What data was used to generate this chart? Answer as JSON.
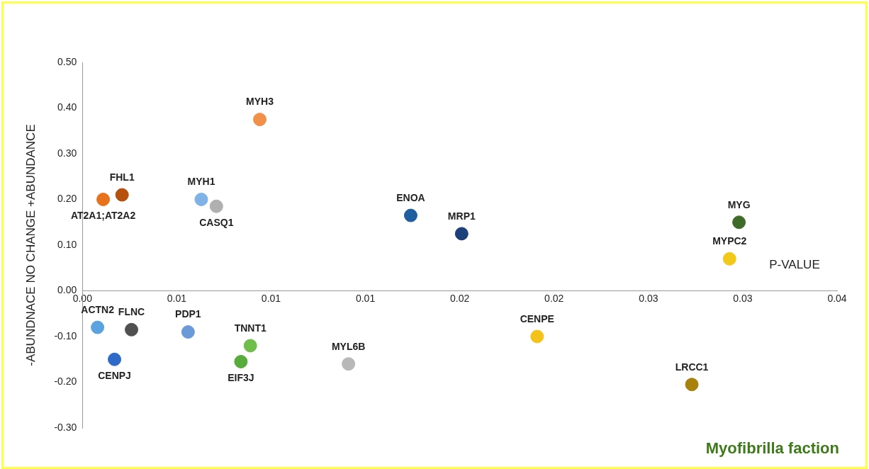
{
  "chart_data": {
    "type": "scatter",
    "ylabel": "-ABUNDNACE NO CHANGE +ABUNDANCE",
    "xlabel": "P-VALUE",
    "x": [
      0.0021,
      0.0011,
      0.0094,
      0.0063,
      0.0071,
      0.0174,
      0.0201,
      0.0348,
      0.0343,
      0.0008,
      0.0026,
      0.0017,
      0.0056,
      0.0089,
      0.0084,
      0.0141,
      0.0241,
      0.0323
    ],
    "values": [
      0.21,
      0.2,
      0.375,
      0.2,
      0.185,
      0.165,
      0.125,
      0.15,
      0.07,
      -0.08,
      -0.085,
      -0.15,
      -0.09,
      -0.12,
      -0.155,
      -0.16,
      -0.1,
      -0.205
    ],
    "colors": [
      "#b5500f",
      "#e8721c",
      "#f0904a",
      "#7fb2e6",
      "#b0b0b0",
      "#1f5fa0",
      "#1d3f7a",
      "#3f6b28",
      "#f2c81a",
      "#5aa2e0",
      "#505050",
      "#2f6bc6",
      "#6a9ad8",
      "#6fbd4a",
      "#58ac3c",
      "#b8b8b8",
      "#f5c21a",
      "#a8820c"
    ],
    "marker": "circle",
    "annotations": [
      {
        "text": "FHL1",
        "x": 0.0021,
        "y": 0.21
      },
      {
        "text": "AT2A1;AT2A2",
        "x": 0.0011,
        "y": 0.2
      },
      {
        "text": "MYH3",
        "x": 0.0094,
        "y": 0.375
      },
      {
        "text": "MYH1",
        "x": 0.0063,
        "y": 0.2
      },
      {
        "text": "CASQ1",
        "x": 0.0071,
        "y": 0.185
      },
      {
        "text": "ENOA",
        "x": 0.0174,
        "y": 0.165
      },
      {
        "text": "MRP1",
        "x": 0.0201,
        "y": 0.125
      },
      {
        "text": "MYG",
        "x": 0.0348,
        "y": 0.15
      },
      {
        "text": "MYPC2",
        "x": 0.0343,
        "y": 0.07
      },
      {
        "text": "ACTN2",
        "x": 0.0008,
        "y": -0.08
      },
      {
        "text": "FLNC",
        "x": 0.0026,
        "y": -0.085
      },
      {
        "text": "CENPJ",
        "x": 0.0017,
        "y": -0.15
      },
      {
        "text": "PDP1",
        "x": 0.0056,
        "y": -0.09
      },
      {
        "text": "TNNT1",
        "x": 0.0089,
        "y": -0.12
      },
      {
        "text": "EIF3J",
        "x": 0.0084,
        "y": -0.155
      },
      {
        "text": "MYL6B",
        "x": 0.0141,
        "y": -0.16
      },
      {
        "text": "CENPE",
        "x": 0.0241,
        "y": -0.1
      },
      {
        "text": "LRCC1",
        "x": 0.0323,
        "y": -0.205
      },
      "Myofibrilla faction"
    ],
    "xlim": [
      0,
      0.04
    ],
    "xticks": [
      {
        "value": 0,
        "label": "0.00"
      },
      {
        "value": 0.005,
        "label": "0.01"
      },
      {
        "value": 0.01,
        "label": "0.01"
      },
      {
        "value": 0.015,
        "label": "0.01"
      },
      {
        "value": 0.02,
        "label": "0.02"
      },
      {
        "value": 0.025,
        "label": "0.02"
      },
      {
        "value": 0.03,
        "label": "0.03"
      },
      {
        "value": 0.035,
        "label": "0.03"
      },
      {
        "value": 0.04,
        "label": "0.04"
      }
    ],
    "ylim": [
      -0.3,
      0.5
    ],
    "yticks": [
      {
        "value": -0.3,
        "label": "-0.30"
      },
      {
        "value": -0.2,
        "label": "-0.20"
      },
      {
        "value": -0.1,
        "label": "-0.10"
      },
      {
        "value": 0,
        "label": "0.00"
      },
      {
        "value": 0.1,
        "label": "0.10"
      },
      {
        "value": 0.2,
        "label": "0.20"
      },
      {
        "value": 0.3,
        "label": "0.30"
      },
      {
        "value": 0.4,
        "label": "0.40"
      },
      {
        "value": 0.5,
        "label": "0.50"
      }
    ],
    "grid": false,
    "legend": false
  }
}
